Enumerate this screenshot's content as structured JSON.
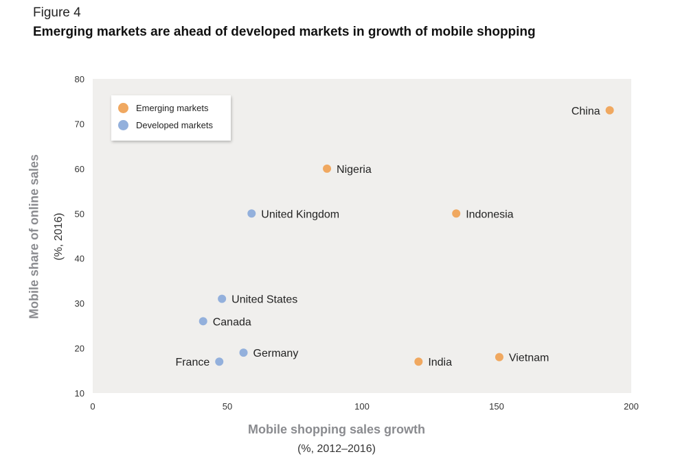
{
  "figure_label": "Figure 4",
  "title": "Emerging markets are ahead of developed markets in growth of mobile shopping",
  "colors": {
    "emerging": "#f0a860",
    "developed": "#93b0dc",
    "plot_bg": "#f0efed",
    "axis_title": "#8a8b8f"
  },
  "chart_data": {
    "type": "scatter",
    "title": "Emerging markets are ahead of developed markets in growth of mobile shopping",
    "xlabel": "Mobile shopping sales growth",
    "xlabel_sub": "(%, 2012–2016)",
    "ylabel": "Mobile share of online sales",
    "ylabel_sub": "(%, 2016)",
    "xlim": [
      0,
      200
    ],
    "ylim": [
      10,
      80
    ],
    "xticks": [
      0,
      50,
      100,
      150,
      200
    ],
    "yticks": [
      10,
      20,
      30,
      40,
      50,
      60,
      70,
      80
    ],
    "grid": false,
    "legend_position": "top-left",
    "series": [
      {
        "name": "Emerging markets",
        "color": "#f0a860",
        "points": [
          {
            "label": "China",
            "x": 192,
            "y": 73,
            "label_side": "left"
          },
          {
            "label": "Nigeria",
            "x": 87,
            "y": 60,
            "label_side": "right"
          },
          {
            "label": "Indonesia",
            "x": 135,
            "y": 50,
            "label_side": "right"
          },
          {
            "label": "India",
            "x": 121,
            "y": 17,
            "label_side": "right"
          },
          {
            "label": "Vietnam",
            "x": 151,
            "y": 18,
            "label_side": "right"
          }
        ]
      },
      {
        "name": "Developed markets",
        "color": "#93b0dc",
        "points": [
          {
            "label": "United Kingdom",
            "x": 59,
            "y": 50,
            "label_side": "right"
          },
          {
            "label": "United States",
            "x": 48,
            "y": 31,
            "label_side": "right"
          },
          {
            "label": "Canada",
            "x": 41,
            "y": 26,
            "label_side": "right"
          },
          {
            "label": "Germany",
            "x": 56,
            "y": 19,
            "label_side": "right"
          },
          {
            "label": "France",
            "x": 47,
            "y": 17,
            "label_side": "left"
          }
        ]
      }
    ]
  }
}
